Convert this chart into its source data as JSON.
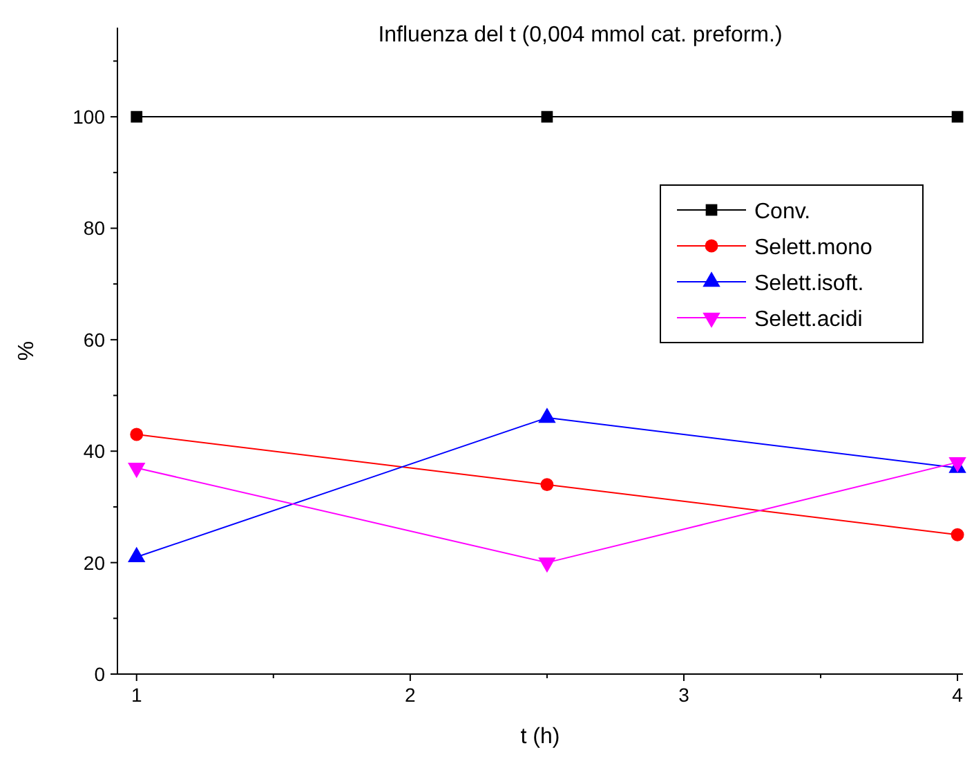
{
  "chart_data": {
    "type": "line",
    "title": "Influenza del t (0,004 mmol cat. preform.)",
    "xlabel": "t (h)",
    "ylabel": "%",
    "x": [
      1,
      2.5,
      4
    ],
    "series": [
      {
        "name": "Conv.",
        "color": "#000000",
        "marker": "square",
        "values": [
          100,
          100,
          100
        ]
      },
      {
        "name": "Selett.mono",
        "color": "#ff0000",
        "marker": "circle",
        "values": [
          43,
          34,
          25
        ]
      },
      {
        "name": "Selett.isoft.",
        "color": "#0000ff",
        "marker": "triangle",
        "values": [
          21,
          46,
          37
        ]
      },
      {
        "name": "Selett.acidi",
        "color": "#ff00ff",
        "marker": "triangle-down",
        "values": [
          37,
          20,
          38
        ]
      }
    ],
    "xlim": [
      0.93,
      4.02
    ],
    "ylim": [
      0,
      116
    ],
    "xticks": [
      1,
      {
        "value": 1.5,
        "label": null
      },
      2,
      {
        "value": 2.5,
        "label": null
      },
      3,
      {
        "value": 3.5,
        "label": null
      },
      4
    ],
    "yticks": [
      0,
      {
        "value": 10,
        "label": null
      },
      20,
      {
        "value": 30,
        "label": null
      },
      40,
      {
        "value": 50,
        "label": null
      },
      60,
      {
        "value": 70,
        "label": null
      },
      80,
      {
        "value": 90,
        "label": null
      },
      100,
      {
        "value": 110,
        "label": null
      }
    ],
    "grid": false,
    "legend": "top right",
    "line_style": "solid"
  }
}
